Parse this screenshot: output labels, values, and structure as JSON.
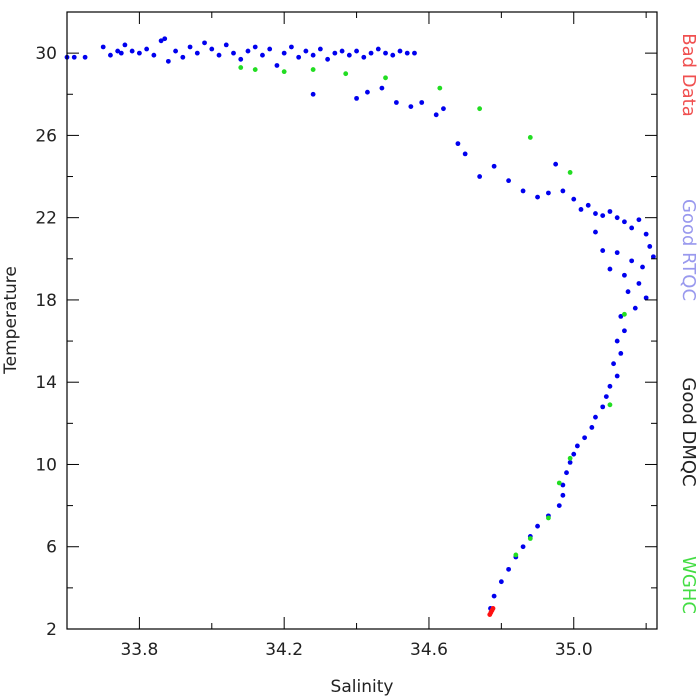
{
  "chart_data": {
    "type": "scatter",
    "title": "",
    "xlabel": "Salinity",
    "ylabel": "Temperature",
    "xlim": [
      33.6,
      35.23
    ],
    "ylim": [
      2,
      32
    ],
    "xticks": [
      33.8,
      34.2,
      34.6,
      35.0
    ],
    "xtick_labels": [
      "33.8",
      "34.2",
      "34.6",
      "35.0"
    ],
    "yticks": [
      2,
      6,
      10,
      14,
      18,
      22,
      26,
      30
    ],
    "ytick_labels": [
      "2",
      "6",
      "10",
      "14",
      "18",
      "22",
      "26",
      "30"
    ],
    "legend": [
      {
        "label": "Bad Data",
        "color": "#f05050"
      },
      {
        "label": "Good RTQC",
        "color": "#9999ee"
      },
      {
        "label": "Good DMQC",
        "color": "#222222"
      },
      {
        "label": "WGHC",
        "color": "#44dd44"
      }
    ],
    "legend_placement": "right",
    "grid": false,
    "series": [
      {
        "name": "Good RTQC",
        "color": "#0000ee",
        "points": [
          [
            33.6,
            29.8
          ],
          [
            33.62,
            29.8
          ],
          [
            33.65,
            29.8
          ],
          [
            33.7,
            30.3
          ],
          [
            33.72,
            29.9
          ],
          [
            33.74,
            30.1
          ],
          [
            33.75,
            30.0
          ],
          [
            33.76,
            30.4
          ],
          [
            33.78,
            30.1
          ],
          [
            33.8,
            30.0
          ],
          [
            33.82,
            30.2
          ],
          [
            33.84,
            29.9
          ],
          [
            33.86,
            30.6
          ],
          [
            33.87,
            30.7
          ],
          [
            33.88,
            29.6
          ],
          [
            33.9,
            30.1
          ],
          [
            33.92,
            29.8
          ],
          [
            33.94,
            30.3
          ],
          [
            33.96,
            30.0
          ],
          [
            33.98,
            30.5
          ],
          [
            34.0,
            30.2
          ],
          [
            34.02,
            29.9
          ],
          [
            34.04,
            30.4
          ],
          [
            34.06,
            30.0
          ],
          [
            34.08,
            29.7
          ],
          [
            34.1,
            30.1
          ],
          [
            34.12,
            30.3
          ],
          [
            34.14,
            29.9
          ],
          [
            34.16,
            30.2
          ],
          [
            34.18,
            29.4
          ],
          [
            34.2,
            30.0
          ],
          [
            34.22,
            30.3
          ],
          [
            34.24,
            29.8
          ],
          [
            34.26,
            30.1
          ],
          [
            34.28,
            29.9
          ],
          [
            34.3,
            30.2
          ],
          [
            34.32,
            29.7
          ],
          [
            34.34,
            30.0
          ],
          [
            34.36,
            30.1
          ],
          [
            34.38,
            29.9
          ],
          [
            34.4,
            30.1
          ],
          [
            34.42,
            29.8
          ],
          [
            34.44,
            30.0
          ],
          [
            34.46,
            30.2
          ],
          [
            34.48,
            30.0
          ],
          [
            34.5,
            29.9
          ],
          [
            34.52,
            30.1
          ],
          [
            34.54,
            30.0
          ],
          [
            34.56,
            30.0
          ],
          [
            34.28,
            28.0
          ],
          [
            34.4,
            27.8
          ],
          [
            34.43,
            28.1
          ],
          [
            34.47,
            28.3
          ],
          [
            34.51,
            27.6
          ],
          [
            34.55,
            27.4
          ],
          [
            34.58,
            27.6
          ],
          [
            34.62,
            27.0
          ],
          [
            34.64,
            27.3
          ],
          [
            34.68,
            25.6
          ],
          [
            34.7,
            25.1
          ],
          [
            34.74,
            24.0
          ],
          [
            34.78,
            24.5
          ],
          [
            34.82,
            23.8
          ],
          [
            34.86,
            23.3
          ],
          [
            34.9,
            23.0
          ],
          [
            34.93,
            23.2
          ],
          [
            34.95,
            24.6
          ],
          [
            34.97,
            23.3
          ],
          [
            35.0,
            22.9
          ],
          [
            35.02,
            22.4
          ],
          [
            35.04,
            22.6
          ],
          [
            35.06,
            22.2
          ],
          [
            35.08,
            22.1
          ],
          [
            35.1,
            22.3
          ],
          [
            35.12,
            22.0
          ],
          [
            35.14,
            21.8
          ],
          [
            35.16,
            21.5
          ],
          [
            35.18,
            21.9
          ],
          [
            35.2,
            21.2
          ],
          [
            35.21,
            20.6
          ],
          [
            35.22,
            20.1
          ],
          [
            35.06,
            21.3
          ],
          [
            35.08,
            20.4
          ],
          [
            35.1,
            19.5
          ],
          [
            35.12,
            20.3
          ],
          [
            35.14,
            19.2
          ],
          [
            35.16,
            19.9
          ],
          [
            35.18,
            18.8
          ],
          [
            35.19,
            19.6
          ],
          [
            35.2,
            18.1
          ],
          [
            35.17,
            17.6
          ],
          [
            35.15,
            18.4
          ],
          [
            35.13,
            17.2
          ],
          [
            35.14,
            16.5
          ],
          [
            35.12,
            16.0
          ],
          [
            35.13,
            15.4
          ],
          [
            35.11,
            14.9
          ],
          [
            35.12,
            14.3
          ],
          [
            35.1,
            13.8
          ],
          [
            35.09,
            13.3
          ],
          [
            35.08,
            12.8
          ],
          [
            35.06,
            12.3
          ],
          [
            35.05,
            11.8
          ],
          [
            35.03,
            11.3
          ],
          [
            35.01,
            10.9
          ],
          [
            35.0,
            10.5
          ],
          [
            34.99,
            10.1
          ],
          [
            34.98,
            9.6
          ],
          [
            34.97,
            9.0
          ],
          [
            34.97,
            8.5
          ],
          [
            34.96,
            8.0
          ],
          [
            34.93,
            7.5
          ],
          [
            34.9,
            7.0
          ],
          [
            34.88,
            6.5
          ],
          [
            34.86,
            6.0
          ],
          [
            34.84,
            5.5
          ],
          [
            34.82,
            4.9
          ],
          [
            34.8,
            4.3
          ],
          [
            34.78,
            3.6
          ],
          [
            34.77,
            3.0
          ]
        ]
      },
      {
        "name": "WGHC",
        "color": "#22dd22",
        "points": [
          [
            34.08,
            29.3
          ],
          [
            34.12,
            29.2
          ],
          [
            34.2,
            29.1
          ],
          [
            34.28,
            29.2
          ],
          [
            34.37,
            29.0
          ],
          [
            34.48,
            28.8
          ],
          [
            34.63,
            28.3
          ],
          [
            34.74,
            27.3
          ],
          [
            34.88,
            25.9
          ],
          [
            34.99,
            24.2
          ],
          [
            35.14,
            17.3
          ],
          [
            35.1,
            12.9
          ],
          [
            34.99,
            10.3
          ],
          [
            34.96,
            9.1
          ],
          [
            34.93,
            7.4
          ],
          [
            34.88,
            6.4
          ],
          [
            34.84,
            5.6
          ]
        ]
      },
      {
        "name": "Bad Data",
        "color": "#ff1111",
        "points": [
          [
            34.768,
            2.7
          ],
          [
            34.771,
            2.8
          ],
          [
            34.774,
            2.9
          ],
          [
            34.777,
            3.0
          ]
        ]
      }
    ]
  }
}
